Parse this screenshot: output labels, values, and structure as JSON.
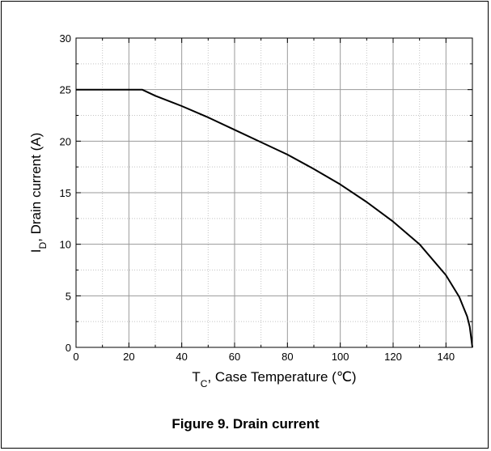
{
  "caption": "Figure 9. Drain current",
  "chart_data": {
    "type": "line",
    "title": "",
    "xlabel": {
      "main": "T",
      "sub": "C",
      "rest": ", Case Temperature (℃)"
    },
    "ylabel": {
      "main": "I",
      "sub": "D",
      "rest": ", Drain current (A)"
    },
    "xlim": [
      0,
      150
    ],
    "ylim": [
      0,
      30
    ],
    "x_ticks": [
      0,
      20,
      40,
      60,
      80,
      100,
      120,
      140
    ],
    "y_ticks": [
      0,
      5,
      10,
      15,
      20,
      25,
      30
    ],
    "grid": true,
    "series": [
      {
        "color": "#000000",
        "x": [
          0,
          25,
          30,
          40,
          50,
          60,
          70,
          80,
          90,
          100,
          110,
          120,
          130,
          140,
          145,
          148,
          149,
          150
        ],
        "y": [
          25,
          25,
          24.4,
          23.4,
          22.3,
          21.1,
          19.9,
          18.7,
          17.3,
          15.8,
          14.1,
          12.2,
          10.0,
          7.0,
          4.9,
          3.0,
          2.0,
          0
        ]
      }
    ]
  }
}
